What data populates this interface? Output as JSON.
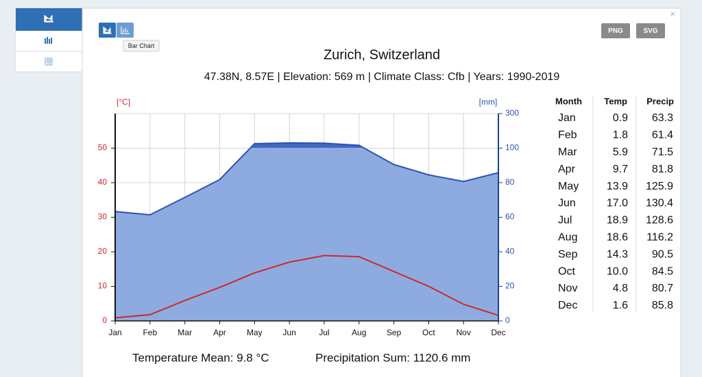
{
  "chart_data": {
    "type": "climate",
    "title": "Zurich, Switzerland",
    "subtitle": "47.38N, 8.57E | Elevation: 569 m | Climate Class: Cfb | Years: 1990-2019",
    "y_label": "[°C]",
    "y2_label": "[mm]",
    "categories": [
      "Jan",
      "Feb",
      "Mar",
      "Apr",
      "May",
      "Jun",
      "Jul",
      "Aug",
      "Sep",
      "Oct",
      "Nov",
      "Dec"
    ],
    "series": [
      {
        "name": "Temp",
        "color": "#d1262b",
        "values": [
          0.9,
          1.8,
          5.9,
          9.7,
          13.9,
          17.0,
          18.9,
          18.6,
          14.3,
          10.0,
          4.8,
          1.6
        ],
        "value_labels": [
          "0.9",
          "1.8",
          "5.9",
          "9.7",
          "13.9",
          "17.0",
          "18.9",
          "18.6",
          "14.3",
          "10.0",
          "4.8",
          "1.6"
        ]
      },
      {
        "name": "Precip",
        "color": "#2a52b4",
        "fill": "#87a6de",
        "axis": "y2",
        "values": [
          63.3,
          61.4,
          71.5,
          81.8,
          125.9,
          130.4,
          128.6,
          116.2,
          90.5,
          84.5,
          80.7,
          85.8
        ],
        "value_labels": [
          "63.3",
          "61.4",
          "71.5",
          "81.8",
          "125.9",
          "130.4",
          "128.6",
          "116.2",
          "90.5",
          "84.5",
          "80.7",
          "85.8"
        ]
      }
    ],
    "ylim": [
      0,
      60
    ],
    "yticks": [
      0,
      10,
      20,
      30,
      40,
      50
    ],
    "y2lim": [
      0,
      300
    ],
    "y2ticks": [
      0,
      20,
      40,
      60,
      80,
      100,
      300
    ],
    "grid": true,
    "footer": [
      "Temperature Mean: 9.8 °C",
      "Precipitation Sum: 1120.6 mm"
    ]
  },
  "table": {
    "first_column": "Month"
  },
  "toolbar": {
    "tooltip": "Bar Chart",
    "export": [
      "PNG",
      "SVG"
    ],
    "close": "×"
  }
}
